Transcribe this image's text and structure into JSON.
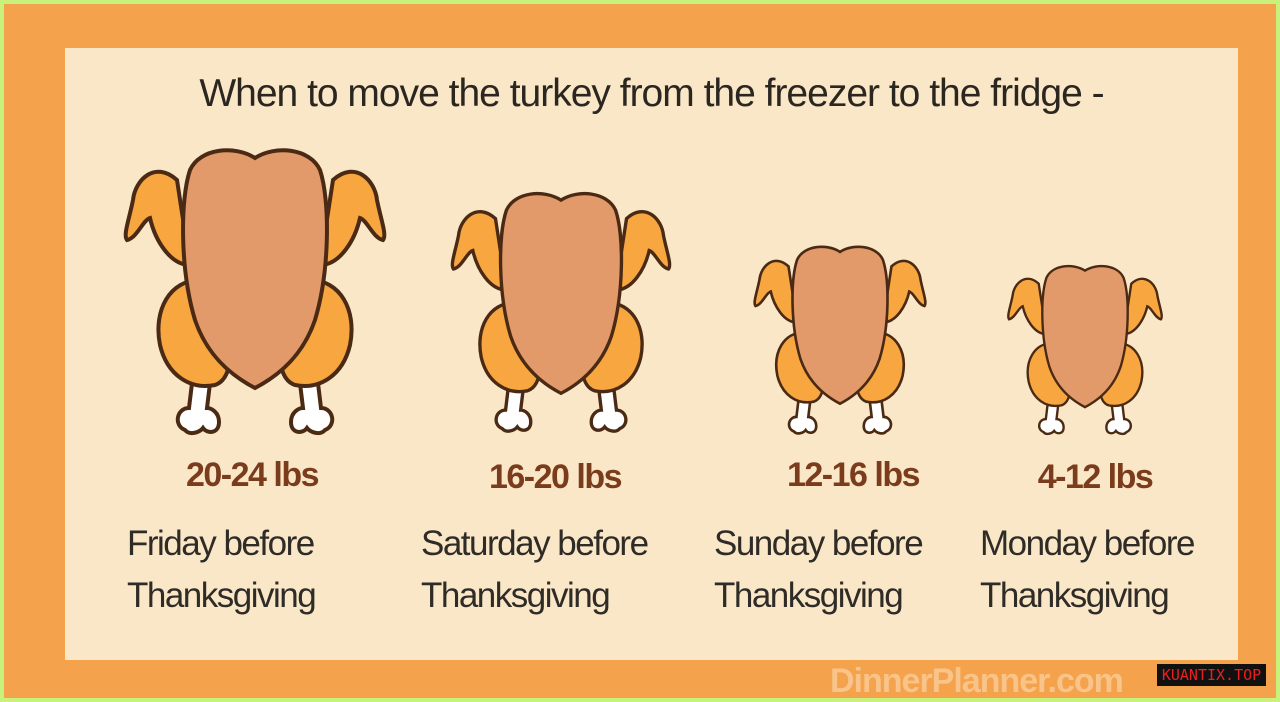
{
  "title": "When to move the turkey from the freezer to the fridge -",
  "colors": {
    "border": "#c9f27c",
    "frame": "#f5a24c",
    "panel": "#f9e7c8",
    "weight": "#7a3c1c",
    "body": "#e29a6a",
    "limbs": "#f7a640"
  },
  "items": [
    {
      "weight": "20-24 lbs",
      "day_line1": "Friday before",
      "day_line2": "Thanksgiving",
      "icon": "turkey-large-icon"
    },
    {
      "weight": "16-20 lbs",
      "day_line1": "Saturday before",
      "day_line2": "Thanksgiving",
      "icon": "turkey-medium-icon"
    },
    {
      "weight": "12-16 lbs",
      "day_line1": "Sunday before",
      "day_line2": "Thanksgiving",
      "icon": "turkey-small-icon"
    },
    {
      "weight": "4-12 lbs",
      "day_line1": "Monday before",
      "day_line2": "Thanksgiving",
      "icon": "turkey-smallest-icon"
    }
  ],
  "watermark": "DinnerPlanner.com",
  "badge": "KUANTIX.TOP"
}
